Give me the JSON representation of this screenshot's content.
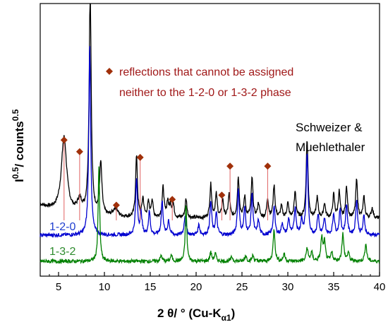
{
  "chart_data": {
    "type": "line",
    "xlabel": "2 θ/ ° (Cu-K",
    "xlabel_sub": "α1",
    "xlabel_close": ")",
    "ylabel": "I",
    "ylabel_sup1": "0.5",
    "ylabel_mid": "/ counts",
    "ylabel_sup2": "0.5",
    "xlim": [
      3,
      40
    ],
    "xticks": [
      "5",
      "10",
      "15",
      "20",
      "25",
      "30",
      "35",
      "40"
    ],
    "grid": false,
    "annotations": {
      "marker_note_line1": "reflections that cannot be assigned",
      "marker_note_line2": "neither to the 1-2-0 or 1-3-2 phase",
      "source_line1": "Schweizer &",
      "source_line2": "Muehlethaler"
    },
    "colors": {
      "black_series": "#000000",
      "blue_series": "#0000d0",
      "green_series": "#008000",
      "marker": "#a0300a",
      "marker_line": "#e06060",
      "note_text": "#a01818",
      "blue_label": "#1f3fd0",
      "green_label": "#2e8b2e"
    },
    "series": [
      {
        "name": "",
        "color": "#000000",
        "baseline": 0.0,
        "peaks": [
          [
            5.6,
            5.2,
            0.35
          ],
          [
            7.3,
            0.9,
            0.3
          ],
          [
            8.4,
            1.6,
            0.25
          ],
          [
            8.45,
            14.3,
            0.12
          ],
          [
            9.6,
            3.6,
            0.15
          ],
          [
            11.2,
            0.6,
            0.3
          ],
          [
            13.5,
            4.2,
            0.12
          ],
          [
            14.2,
            1.3,
            0.12
          ],
          [
            14.8,
            1.0,
            0.12
          ],
          [
            15.2,
            1.2,
            0.12
          ],
          [
            16.4,
            2.1,
            0.12
          ],
          [
            16.9,
            1.1,
            0.12
          ],
          [
            17.2,
            0.8,
            0.12
          ],
          [
            17.5,
            0.9,
            0.12
          ],
          [
            18.9,
            1.3,
            0.12
          ],
          [
            21.6,
            2.3,
            0.12
          ],
          [
            22.2,
            1.6,
            0.12
          ],
          [
            22.9,
            1.2,
            0.12
          ],
          [
            23.6,
            1.6,
            0.12
          ],
          [
            24.6,
            2.8,
            0.12
          ],
          [
            25.3,
            1.4,
            0.12
          ],
          [
            26.1,
            2.7,
            0.12
          ],
          [
            26.8,
            1.0,
            0.12
          ],
          [
            27.8,
            1.3,
            0.12
          ],
          [
            28.5,
            2.2,
            0.12
          ],
          [
            29.3,
            0.8,
            0.12
          ],
          [
            30.0,
            1.0,
            0.12
          ],
          [
            30.8,
            1.8,
            0.12
          ],
          [
            32.1,
            5.4,
            0.12
          ],
          [
            33.2,
            1.4,
            0.12
          ],
          [
            34.0,
            1.0,
            0.12
          ],
          [
            35.0,
            1.6,
            0.12
          ],
          [
            35.6,
            1.8,
            0.12
          ],
          [
            36.4,
            2.1,
            0.12
          ],
          [
            37.5,
            2.6,
            0.12
          ],
          [
            38.3,
            1.4,
            0.12
          ],
          [
            39.2,
            0.7,
            0.12
          ]
        ]
      },
      {
        "name": "1-2-0",
        "color": "#0000d0",
        "baseline": 0.0,
        "peaks": [
          [
            8.4,
            13.0,
            0.12
          ],
          [
            13.5,
            3.8,
            0.12
          ],
          [
            14.0,
            1.5,
            0.12
          ],
          [
            14.9,
            1.6,
            0.12
          ],
          [
            16.3,
            2.3,
            0.12
          ],
          [
            17.0,
            1.0,
            0.12
          ],
          [
            18.8,
            1.4,
            0.12
          ],
          [
            20.3,
            0.7,
            0.12
          ],
          [
            21.6,
            2.3,
            0.12
          ],
          [
            22.2,
            1.5,
            0.12
          ],
          [
            24.6,
            3.2,
            0.12
          ],
          [
            25.3,
            1.8,
            0.12
          ],
          [
            26.1,
            2.8,
            0.12
          ],
          [
            26.8,
            1.0,
            0.12
          ],
          [
            28.5,
            2.0,
            0.12
          ],
          [
            29.4,
            0.8,
            0.12
          ],
          [
            30.1,
            1.1,
            0.12
          ],
          [
            30.8,
            1.9,
            0.12
          ],
          [
            31.5,
            1.0,
            0.12
          ],
          [
            32.1,
            5.6,
            0.12
          ],
          [
            33.3,
            1.4,
            0.12
          ],
          [
            34.0,
            1.1,
            0.12
          ],
          [
            35.0,
            1.5,
            0.12
          ],
          [
            35.7,
            1.7,
            0.12
          ],
          [
            36.4,
            2.1,
            0.12
          ],
          [
            37.5,
            2.4,
            0.12
          ],
          [
            38.3,
            1.3,
            0.12
          ]
        ]
      },
      {
        "name": "1-3-2",
        "color": "#008000",
        "baseline": 0.0,
        "peaks": [
          [
            9.4,
            6.6,
            0.1
          ],
          [
            16.2,
            0.4,
            0.12
          ],
          [
            17.3,
            0.4,
            0.12
          ],
          [
            18.9,
            3.9,
            0.1
          ],
          [
            21.6,
            0.6,
            0.12
          ],
          [
            22.1,
            0.5,
            0.12
          ],
          [
            23.9,
            0.3,
            0.12
          ],
          [
            25.4,
            0.4,
            0.12
          ],
          [
            26.2,
            0.4,
            0.12
          ],
          [
            28.5,
            2.2,
            0.12
          ],
          [
            29.6,
            0.5,
            0.12
          ],
          [
            32.1,
            0.9,
            0.12
          ],
          [
            32.6,
            0.6,
            0.12
          ],
          [
            33.7,
            1.6,
            0.12
          ],
          [
            34.0,
            1.3,
            0.12
          ],
          [
            34.8,
            0.6,
            0.12
          ],
          [
            36.0,
            1.9,
            0.12
          ],
          [
            36.6,
            0.6,
            0.12
          ],
          [
            38.5,
            1.2,
            0.12
          ]
        ]
      }
    ],
    "markers": [
      {
        "x": 5.6,
        "y": 5.4
      },
      {
        "x": 7.3,
        "y": 4.6
      },
      {
        "x": 11.3,
        "y": 0.9
      },
      {
        "x": 13.9,
        "y": 4.2
      },
      {
        "x": 17.4,
        "y": 1.3
      },
      {
        "x": 22.8,
        "y": 1.6
      },
      {
        "x": 23.7,
        "y": 3.6
      },
      {
        "x": 27.8,
        "y": 3.6
      }
    ]
  }
}
